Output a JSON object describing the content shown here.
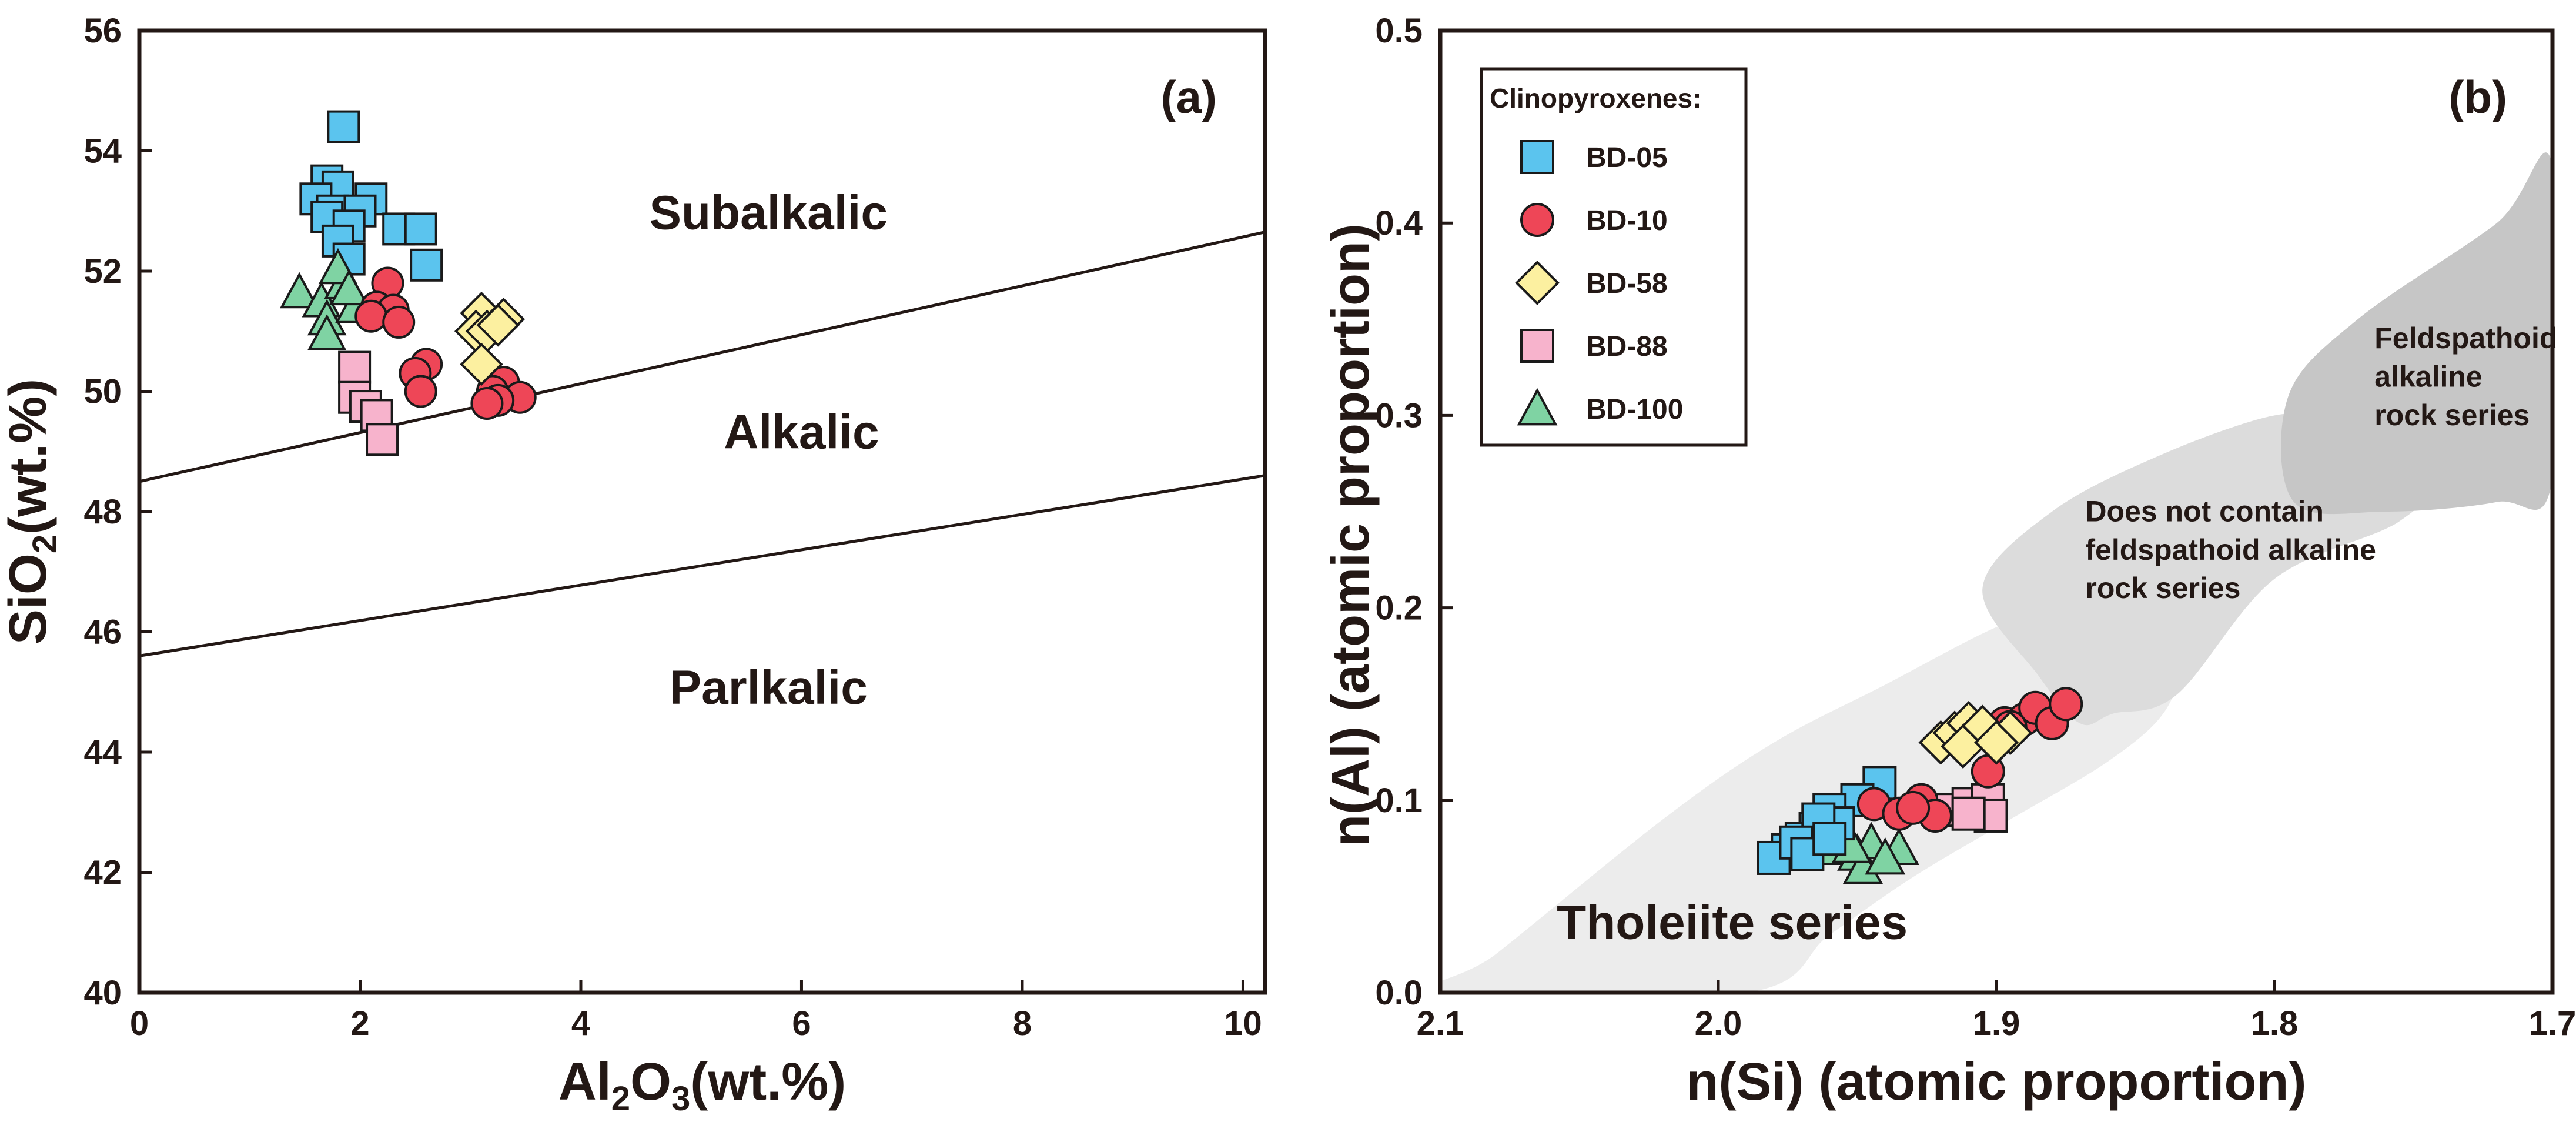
{
  "chart_data": [
    {
      "panel": "(a)",
      "type": "scatter",
      "xlabel": "Al2O3(wt.%)",
      "xlabel_main": "Al",
      "xlabel_sub": "2",
      "xlabel_mid": "O",
      "xlabel_sub2": "3",
      "xlabel_tail": "(wt.%)",
      "ylabel": "SiO2(wt.%)",
      "ylabel_main": "SiO",
      "ylabel_sub": "2",
      "ylabel_tail": "(wt.%)",
      "xlim": [
        0,
        10.2
      ],
      "ylim": [
        40,
        56
      ],
      "xticks": [
        "0",
        "2",
        "4",
        "6",
        "8",
        "10"
      ],
      "yticks": [
        "40",
        "42",
        "44",
        "46",
        "48",
        "50",
        "52",
        "54",
        "56"
      ],
      "lines": [
        {
          "name": "subalkalic-alkalic boundary",
          "points": [
            [
              0,
              48.5
            ],
            [
              10.2,
              52.65
            ]
          ]
        },
        {
          "name": "alkalic-parlkalic boundary",
          "points": [
            [
              0,
              45.6
            ],
            [
              10.2,
              48.6
            ]
          ]
        }
      ],
      "region_labels": [
        {
          "text": "Subalkalic",
          "x": 5.7,
          "y": 52.7
        },
        {
          "text": "Alkalic",
          "x": 6.0,
          "y": 49.05
        },
        {
          "text": "Parlkalic",
          "x": 5.7,
          "y": 44.8
        }
      ],
      "series": [
        {
          "name": "BD-05",
          "marker": "square",
          "color": "#5bc4ee",
          "points": [
            [
              1.85,
              54.4
            ],
            [
              1.7,
              53.5
            ],
            [
              1.8,
              53.4
            ],
            [
              1.6,
              53.2
            ],
            [
              2.1,
              53.2
            ],
            [
              1.75,
              53.0
            ],
            [
              2.0,
              53.0
            ],
            [
              1.7,
              52.9
            ],
            [
              1.9,
              52.75
            ],
            [
              2.35,
              52.7
            ],
            [
              2.55,
              52.7
            ],
            [
              1.8,
              52.5
            ],
            [
              1.9,
              52.2
            ],
            [
              2.6,
              52.1
            ]
          ]
        },
        {
          "name": "BD-10",
          "marker": "circle",
          "color": "#ee4657",
          "points": [
            [
              2.25,
              51.8
            ],
            [
              2.15,
              51.4
            ],
            [
              2.3,
              51.35
            ],
            [
              2.1,
              51.25
            ],
            [
              2.35,
              51.15
            ],
            [
              2.6,
              50.45
            ],
            [
              2.5,
              50.3
            ],
            [
              2.55,
              50.0
            ],
            [
              3.3,
              50.15
            ],
            [
              3.2,
              50.0
            ],
            [
              3.45,
              49.9
            ],
            [
              3.25,
              49.85
            ],
            [
              3.15,
              49.8
            ]
          ]
        },
        {
          "name": "BD-58",
          "marker": "diamond",
          "color": "#fcf0a0",
          "points": [
            [
              3.1,
              51.3
            ],
            [
              3.3,
              51.2
            ],
            [
              3.05,
              51.0
            ],
            [
              3.15,
              51.0
            ],
            [
              3.25,
              51.1
            ],
            [
              3.1,
              50.45
            ]
          ]
        },
        {
          "name": "BD-88",
          "marker": "square",
          "color": "#f7b3cc",
          "points": [
            [
              1.95,
              50.4
            ],
            [
              1.95,
              49.9
            ],
            [
              2.05,
              49.75
            ],
            [
              2.15,
              49.6
            ],
            [
              2.2,
              49.2
            ]
          ]
        },
        {
          "name": "BD-100",
          "marker": "triangle",
          "color": "#7fd3a3",
          "points": [
            [
              1.45,
              51.65
            ],
            [
              1.65,
              51.5
            ],
            [
              1.85,
              51.8
            ],
            [
              1.7,
              51.2
            ],
            [
              1.95,
              51.4
            ],
            [
              1.7,
              50.95
            ],
            [
              1.8,
              52.05
            ],
            [
              1.9,
              51.7
            ]
          ]
        }
      ],
      "panel_label": "(a)"
    },
    {
      "panel": "(b)",
      "type": "scatter",
      "xlabel": "n(Si) (atomic proportion)",
      "ylabel": "n(Al) (atomic proportion)",
      "xlim": [
        2.1,
        1.7
      ],
      "ylim": [
        0.0,
        0.5
      ],
      "xticks": [
        "2.1",
        "2.0",
        "1.9",
        "1.8",
        "1.7"
      ],
      "yticks": [
        "0.0",
        "0.1",
        "0.2",
        "0.3",
        "0.4",
        "0.5"
      ],
      "legend": {
        "title": "Clinopyroxenes:",
        "position": "top-left"
      },
      "region_labels": [
        {
          "text": "Tholeiite series",
          "x": 1.995,
          "y": 0.028
        },
        {
          "text": "Does not contain",
          "x": 1.868,
          "y": 0.245
        },
        {
          "text": "feldspathoid alkaline",
          "x": 1.868,
          "y": 0.225
        },
        {
          "text": "rock series",
          "x": 1.868,
          "y": 0.205
        },
        {
          "text": "Feldspathoid",
          "x": 1.764,
          "y": 0.335
        },
        {
          "text": "alkaline",
          "x": 1.764,
          "y": 0.315
        },
        {
          "text": "rock series",
          "x": 1.764,
          "y": 0.295
        }
      ],
      "regions": [
        {
          "name": "Tholeiite series",
          "color": "#ececec",
          "outline": [
            [
              2.1,
              0.0
            ],
            [
              2.08,
              0.02
            ],
            [
              2.02,
              0.09
            ],
            [
              1.98,
              0.13
            ],
            [
              1.94,
              0.16
            ],
            [
              1.9,
              0.19
            ],
            [
              1.87,
              0.205
            ],
            [
              1.843,
              0.197
            ],
            [
              1.835,
              0.17
            ],
            [
              1.84,
              0.145
            ],
            [
              1.86,
              0.12
            ],
            [
              1.895,
              0.09
            ],
            [
              1.93,
              0.06
            ],
            [
              1.96,
              0.03
            ],
            [
              1.99,
              0.0
            ]
          ]
        },
        {
          "name": "Does not contain feldspathoid alkaline rock series",
          "color": "#dcdcdc",
          "outline": [
            [
              1.885,
              0.165
            ],
            [
              1.905,
              0.21
            ],
            [
              1.88,
              0.25
            ],
            [
              1.84,
              0.28
            ],
            [
              1.8,
              0.3
            ],
            [
              1.785,
              0.295
            ],
            [
              1.745,
              0.27
            ],
            [
              1.755,
              0.245
            ],
            [
              1.8,
              0.215
            ],
            [
              1.835,
              0.155
            ],
            [
              1.858,
              0.145
            ],
            [
              1.87,
              0.14
            ]
          ]
        },
        {
          "name": "Feldspathoid alkaline rock series",
          "color": "#c6c6c6",
          "outline": [
            [
              1.793,
              0.255
            ],
            [
              1.795,
              0.31
            ],
            [
              1.77,
              0.35
            ],
            [
              1.72,
              0.4
            ],
            [
              1.7,
              0.43
            ],
            [
              1.7,
              0.267
            ],
            [
              1.72,
              0.255
            ],
            [
              1.76,
              0.25
            ]
          ]
        }
      ],
      "series": [
        {
          "name": "BD-05",
          "marker": "square",
          "color": "#5bc4ee",
          "points": [
            [
              1.942,
              0.109
            ],
            [
              1.95,
              0.1
            ],
            [
              1.96,
              0.095
            ],
            [
              1.957,
              0.088
            ],
            [
              1.965,
              0.085
            ],
            [
              1.97,
              0.08
            ],
            [
              1.975,
              0.074
            ],
            [
              1.98,
              0.07
            ],
            [
              1.964,
              0.09
            ],
            [
              1.972,
              0.078
            ],
            [
              1.968,
              0.072
            ],
            [
              1.96,
              0.08
            ]
          ]
        },
        {
          "name": "BD-10",
          "marker": "circle",
          "color": "#ee4657",
          "points": [
            [
              1.944,
              0.098
            ],
            [
              1.927,
              0.1
            ],
            [
              1.935,
              0.093
            ],
            [
              1.922,
              0.092
            ],
            [
              1.93,
              0.096
            ],
            [
              1.903,
              0.115
            ],
            [
              1.897,
              0.14
            ],
            [
              1.89,
              0.142
            ],
            [
              1.886,
              0.148
            ],
            [
              1.88,
              0.14
            ],
            [
              1.875,
              0.15
            ],
            [
              1.895,
              0.138
            ]
          ]
        },
        {
          "name": "BD-58",
          "marker": "diamond",
          "color": "#fcf0a0",
          "points": [
            [
              1.92,
              0.13
            ],
            [
              1.915,
              0.135
            ],
            [
              1.91,
              0.14
            ],
            [
              1.905,
              0.138
            ],
            [
              1.912,
              0.128
            ],
            [
              1.895,
              0.135
            ],
            [
              1.9,
              0.13
            ]
          ]
        },
        {
          "name": "BD-88",
          "marker": "square",
          "color": "#f7b3cc",
          "points": [
            [
              1.918,
              0.095
            ],
            [
              1.91,
              0.098
            ],
            [
              1.903,
              0.1
            ],
            [
              1.902,
              0.092
            ],
            [
              1.91,
              0.093
            ]
          ]
        },
        {
          "name": "BD-100",
          "marker": "triangle",
          "color": "#7fd3a3",
          "points": [
            [
              1.96,
              0.075
            ],
            [
              1.955,
              0.08
            ],
            [
              1.95,
              0.072
            ],
            [
              1.948,
              0.065
            ],
            [
              1.945,
              0.078
            ],
            [
              1.935,
              0.075
            ],
            [
              1.94,
              0.07
            ],
            [
              1.952,
              0.076
            ]
          ]
        }
      ],
      "panel_label": "(b)"
    }
  ]
}
